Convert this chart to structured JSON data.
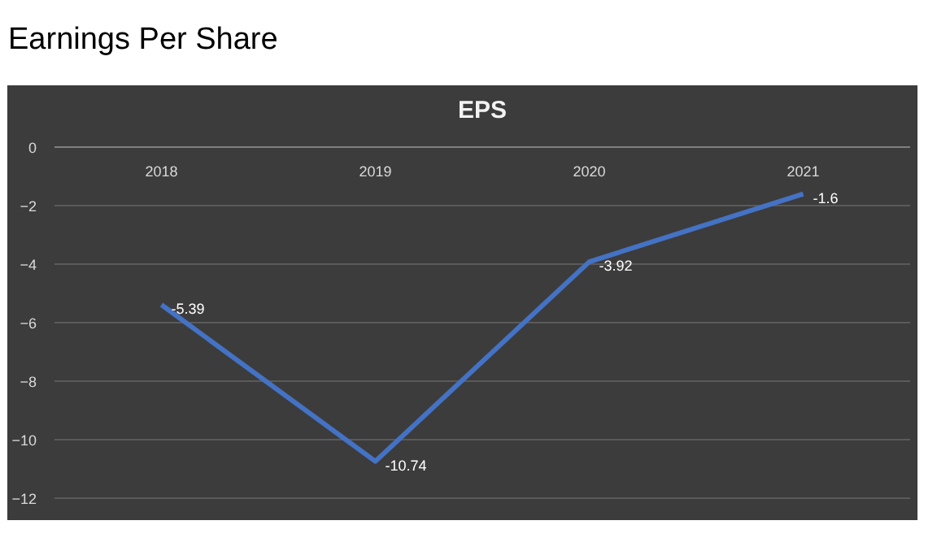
{
  "chart_data": {
    "type": "line",
    "title": "Earnings Per Share",
    "subtitle": "EPS",
    "categories": [
      "2018",
      "2019",
      "2020",
      "2021"
    ],
    "series": [
      {
        "color": "#4472c4",
        "values": [
          -5.39,
          -10.74,
          -3.92,
          -1.6
        ]
      }
    ],
    "ylim": [
      -12.5,
      0.5
    ],
    "yticks": [
      0,
      -2,
      -4,
      -6,
      -8,
      -10,
      -12
    ],
    "grid": "y",
    "data_labels": true,
    "marker": "none",
    "line_style": "solid"
  }
}
